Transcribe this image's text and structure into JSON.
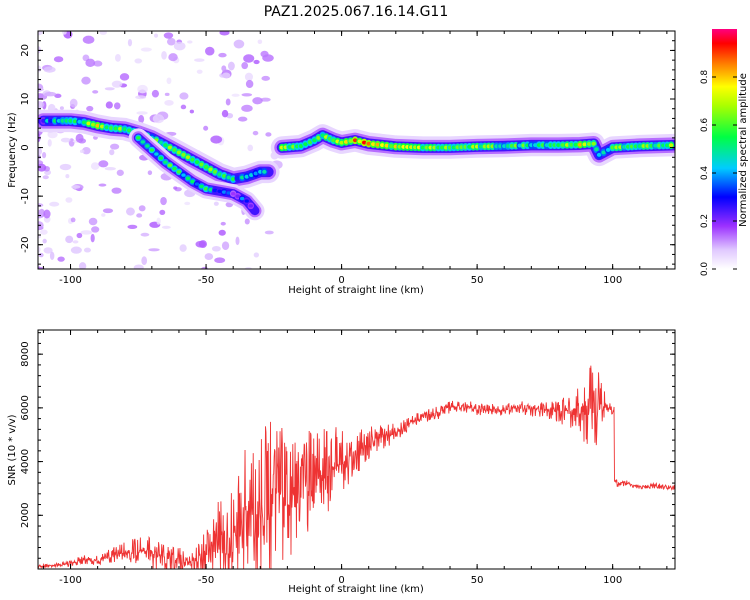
{
  "title": "PAZ1.2025.067.16.14.G11",
  "chart_data": [
    {
      "type": "heatmap",
      "xlabel": "Height of straight line (km)",
      "ylabel": "Frequency (Hz)",
      "xlim": [
        -112,
        123
      ],
      "ylim": [
        -25,
        24
      ],
      "xticks": [
        -100,
        -50,
        0,
        50,
        100
      ],
      "yticks": [
        -20,
        -10,
        0,
        10,
        20
      ],
      "colorbar": {
        "label": "Normalized spectral amplitude",
        "range": [
          0,
          1
        ],
        "ticks": [
          "0.0",
          "0.2",
          "0.4",
          "0.6",
          "0.8"
        ],
        "tick_values": [
          0,
          0.2,
          0.4,
          0.6,
          0.8
        ]
      },
      "colors": [
        "#ffffff",
        "#e6ccff",
        "#b070ff",
        "#7a00ff",
        "#0000ff",
        "#00ccff",
        "#00ff66",
        "#ffff00",
        "#ff8800",
        "#ff0000",
        "#ff0080"
      ],
      "ridge": [
        {
          "x": -110,
          "y": 5.5,
          "a": 0.35
        },
        {
          "x": -100,
          "y": 5.5,
          "a": 0.55
        },
        {
          "x": -95,
          "y": 5.2,
          "a": 0.55
        },
        {
          "x": -90,
          "y": 4.5,
          "a": 0.75
        },
        {
          "x": -85,
          "y": 4.0,
          "a": 0.6
        },
        {
          "x": -80,
          "y": 3.8,
          "a": 0.55
        },
        {
          "x": -75,
          "y": 3.0,
          "a": 0.7
        },
        {
          "x": -70,
          "y": 2.0,
          "a": 0.5
        },
        {
          "x": -65,
          "y": 0.5,
          "a": 0.6
        },
        {
          "x": -60,
          "y": -1.0,
          "a": 0.55
        },
        {
          "x": -55,
          "y": -2.5,
          "a": 0.6
        },
        {
          "x": -50,
          "y": -4.0,
          "a": 0.65
        },
        {
          "x": -45,
          "y": -5.5,
          "a": 0.55
        },
        {
          "x": -40,
          "y": -6.5,
          "a": 0.45
        },
        {
          "x": -35,
          "y": -6.0,
          "a": 0.4
        },
        {
          "x": -30,
          "y": -5.0,
          "a": 0.45
        },
        {
          "x": -27,
          "y": -5.0,
          "a": 0.35
        }
      ],
      "branch": [
        {
          "x": -75,
          "y": 2.0,
          "a": 0.45
        },
        {
          "x": -70,
          "y": -0.5,
          "a": 0.5
        },
        {
          "x": -65,
          "y": -3.0,
          "a": 0.55
        },
        {
          "x": -60,
          "y": -5.0,
          "a": 0.5
        },
        {
          "x": -55,
          "y": -7.0,
          "a": 0.45
        },
        {
          "x": -50,
          "y": -8.5,
          "a": 0.5
        },
        {
          "x": -45,
          "y": -9.0,
          "a": 0.4
        },
        {
          "x": -40,
          "y": -9.5,
          "a": 0.3
        },
        {
          "x": -35,
          "y": -11.0,
          "a": 0.3
        },
        {
          "x": -32,
          "y": -13.0,
          "a": 0.3
        }
      ],
      "carrier": [
        {
          "x": -22,
          "y": 0.0,
          "a": 0.7
        },
        {
          "x": -15,
          "y": 0.3,
          "a": 0.6
        },
        {
          "x": -10,
          "y": 1.5,
          "a": 0.55
        },
        {
          "x": -7,
          "y": 2.5,
          "a": 0.6
        },
        {
          "x": -3,
          "y": 1.5,
          "a": 0.6
        },
        {
          "x": 0,
          "y": 1.0,
          "a": 0.65
        },
        {
          "x": 5,
          "y": 1.5,
          "a": 0.8
        },
        {
          "x": 10,
          "y": 0.8,
          "a": 0.9
        },
        {
          "x": 15,
          "y": 0.5,
          "a": 0.75
        },
        {
          "x": 20,
          "y": 0.2,
          "a": 0.7
        },
        {
          "x": 30,
          "y": 0.0,
          "a": 0.65
        },
        {
          "x": 40,
          "y": 0.0,
          "a": 0.6
        },
        {
          "x": 50,
          "y": 0.2,
          "a": 0.6
        },
        {
          "x": 60,
          "y": 0.3,
          "a": 0.55
        },
        {
          "x": 70,
          "y": 0.5,
          "a": 0.55
        },
        {
          "x": 80,
          "y": 0.5,
          "a": 0.6
        },
        {
          "x": 88,
          "y": 0.6,
          "a": 0.7
        },
        {
          "x": 93,
          "y": 0.8,
          "a": 0.55
        },
        {
          "x": 95,
          "y": -1.5,
          "a": 0.5
        },
        {
          "x": 100,
          "y": 0.0,
          "a": 0.55
        },
        {
          "x": 110,
          "y": 0.3,
          "a": 0.6
        },
        {
          "x": 123,
          "y": 0.5,
          "a": 0.6
        }
      ]
    },
    {
      "type": "line",
      "xlabel": "Height of straight line (km)",
      "ylabel": "SNR (10 * v/v)",
      "xlim": [
        -112,
        123
      ],
      "ylim": [
        0,
        8900
      ],
      "xticks": [
        -100,
        -50,
        0,
        50,
        100
      ],
      "yticks": [
        2000,
        4000,
        6000,
        8000
      ],
      "line_color": "#ee3333",
      "series": [
        {
          "x": [
            -112,
            -105,
            -100,
            -95,
            -90,
            -85,
            -80,
            -75,
            -70,
            -65,
            -60,
            -55,
            -50,
            -45,
            -40,
            -35,
            -30,
            -27,
            -24,
            -20,
            -15,
            -10,
            -5,
            0,
            5,
            10,
            15,
            20,
            25,
            30,
            35,
            40,
            45,
            50,
            55,
            60,
            65,
            70,
            75,
            80,
            85,
            88,
            90,
            92,
            94,
            96,
            98,
            100,
            101,
            102,
            105,
            110,
            115,
            120,
            123
          ],
          "y": [
            100,
            150,
            200,
            350,
            300,
            500,
            600,
            700,
            600,
            400,
            300,
            350,
            500,
            900,
            1300,
            2000,
            2400,
            2800,
            2800,
            2600,
            2900,
            3300,
            3700,
            3900,
            4300,
            4700,
            4900,
            5100,
            5400,
            5700,
            5800,
            6000,
            6100,
            5900,
            5950,
            5900,
            6050,
            5900,
            5950,
            5900,
            5900,
            5900,
            5850,
            6000,
            6200,
            6100,
            6000,
            5900,
            3300,
            3150,
            3200,
            3050,
            3100,
            3050,
            3050
          ],
          "noise": [
            50,
            80,
            120,
            180,
            200,
            300,
            400,
            500,
            600,
            500,
            500,
            600,
            1000,
            1800,
            2400,
            2600,
            2800,
            3000,
            2800,
            2400,
            2200,
            2000,
            1700,
            1300,
            900,
            600,
            500,
            350,
            250,
            250,
            250,
            250,
            250,
            250,
            250,
            250,
            250,
            250,
            300,
            450,
            700,
            1000,
            1400,
            1600,
            1700,
            900,
            300,
            200,
            100,
            100,
            100,
            100,
            100,
            100,
            100
          ]
        }
      ]
    }
  ]
}
